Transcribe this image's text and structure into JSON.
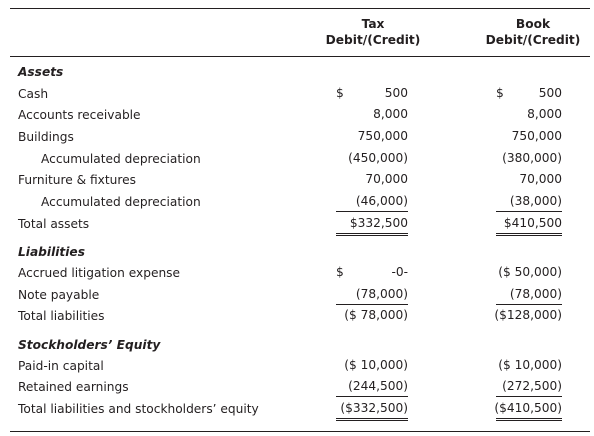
{
  "header": {
    "tax": [
      "Tax",
      "Debit/(Credit)"
    ],
    "book": [
      "Book",
      "Debit/(Credit)"
    ]
  },
  "rows": [
    {
      "label": "Assets",
      "kind": "section"
    },
    {
      "label": "Cash",
      "tax": [
        "$",
        "500"
      ],
      "book": [
        "$",
        "500"
      ]
    },
    {
      "label": "Accounts receivable",
      "tax": "8,000",
      "book": "8,000"
    },
    {
      "label": "Buildings",
      "tax": "750,000",
      "book": "750,000"
    },
    {
      "label": "Accumulated depreciation",
      "kind": "indent",
      "tax": "(450,000)",
      "book": "(380,000)"
    },
    {
      "label": "Furniture & fixtures",
      "tax": "70,000",
      "book": "70,000"
    },
    {
      "label": "Accumulated depreciation",
      "kind": "indent",
      "tax": "(46,000)",
      "book": "(38,000)",
      "underline": "single"
    },
    {
      "label": "Total assets",
      "tax": "$332,500",
      "book": "$410,500",
      "underline": "double"
    },
    {
      "label": "Liabilities",
      "kind": "section"
    },
    {
      "label": "Accrued litigation expense",
      "tax": [
        "$",
        "-0-"
      ],
      "book": "($ 50,000)"
    },
    {
      "label": "Note payable",
      "tax": "(78,000)",
      "book": "(78,000)",
      "underline": "single"
    },
    {
      "label": "Total liabilities",
      "tax": "($ 78,000)",
      "book": "($128,000)"
    },
    {
      "label": "Stockholders’ Equity",
      "kind": "section"
    },
    {
      "label": "Paid-in capital",
      "tax": "($ 10,000)",
      "book": "($ 10,000)"
    },
    {
      "label": "Retained earnings",
      "tax": "(244,500)",
      "book": "(272,500)",
      "underline": "single"
    },
    {
      "label": "Total liabilities and stockholders’ equity",
      "tax": "($332,500)",
      "book": "($410,500)",
      "underline": "double"
    }
  ]
}
